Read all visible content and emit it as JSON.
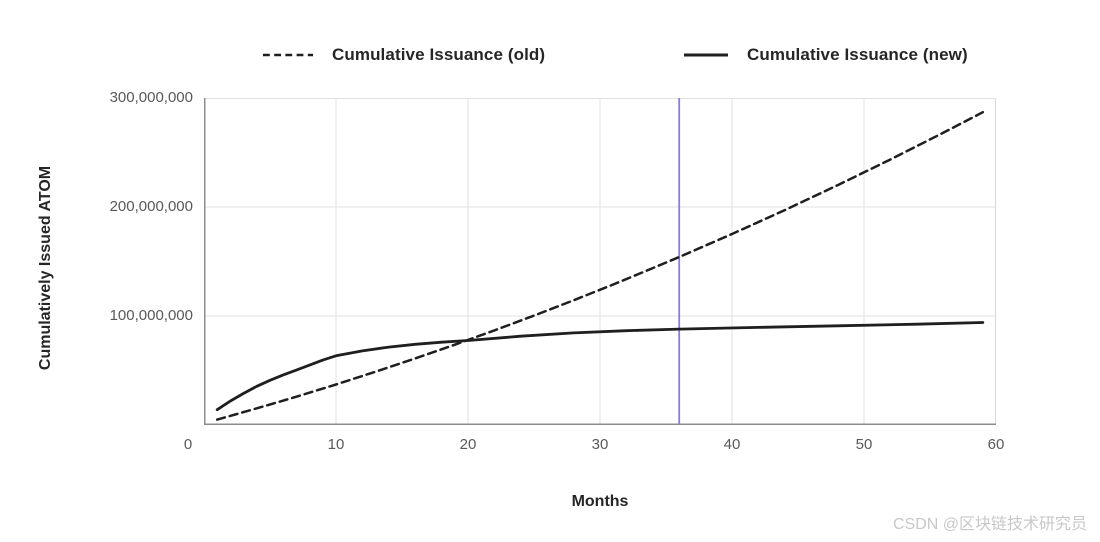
{
  "watermark": "CSDN @区块链技术研究员",
  "colors": {
    "curve": "#1f1f1f",
    "gridline": "#e2e2e2",
    "axis": "#8c8c8c",
    "right_border": "#d9d9d9",
    "milestone_line": "#8c7ae6",
    "tick_text": "#595959",
    "label_text": "#262626",
    "watermark_text": "#c8c8c8"
  },
  "chart_data": {
    "type": "line",
    "title": "",
    "xlabel": "Months",
    "ylabel": "Cumulatively Issued ATOM",
    "xlim": [
      0,
      60
    ],
    "ylim": [
      0,
      300000000
    ],
    "grid": true,
    "legend_position": "top",
    "x_ticks": [
      0,
      10,
      20,
      30,
      40,
      50,
      60
    ],
    "y_ticks": [
      {
        "value": 100000000,
        "label": "100,000,000"
      },
      {
        "value": 200000000,
        "label": "200,000,000"
      },
      {
        "value": 300000000,
        "label": "300,000,000"
      }
    ],
    "vline": {
      "month": 36,
      "color": "#8c7ae6"
    },
    "series": [
      {
        "name": "Cumulative Issuance (old)",
        "style": "dashed",
        "color": "#1f1f1f",
        "points": [
          [
            1,
            5000000
          ],
          [
            3,
            11800000
          ],
          [
            5,
            18800000
          ],
          [
            7,
            26000000
          ],
          [
            10,
            37200000
          ],
          [
            13,
            48900000
          ],
          [
            16,
            61100000
          ],
          [
            19,
            73700000
          ],
          [
            22,
            86800000
          ],
          [
            25,
            100400000
          ],
          [
            28,
            114400000
          ],
          [
            31,
            128900000
          ],
          [
            34,
            143900000
          ],
          [
            36,
            154100000
          ],
          [
            40,
            175200000
          ],
          [
            44,
            197200000
          ],
          [
            48,
            220000000
          ],
          [
            52,
            243600000
          ],
          [
            56,
            268100000
          ],
          [
            59,
            287000000
          ]
        ]
      },
      {
        "name": "Cumulative Issuance (new)",
        "style": "solid",
        "color": "#1f1f1f",
        "points": [
          [
            1,
            14000000
          ],
          [
            2,
            22000000
          ],
          [
            3,
            29000000
          ],
          [
            4,
            35500000
          ],
          [
            5,
            41000000
          ],
          [
            6,
            46000000
          ],
          [
            7,
            50500000
          ],
          [
            8,
            55000000
          ],
          [
            9,
            59500000
          ],
          [
            10,
            63500000
          ],
          [
            12,
            68000000
          ],
          [
            14,
            71500000
          ],
          [
            16,
            74000000
          ],
          [
            18,
            76000000
          ],
          [
            20,
            77500000
          ],
          [
            24,
            81500000
          ],
          [
            28,
            84500000
          ],
          [
            32,
            86500000
          ],
          [
            36,
            88000000
          ],
          [
            42,
            89500000
          ],
          [
            48,
            91000000
          ],
          [
            54,
            92500000
          ],
          [
            59,
            94000000
          ]
        ]
      }
    ]
  }
}
